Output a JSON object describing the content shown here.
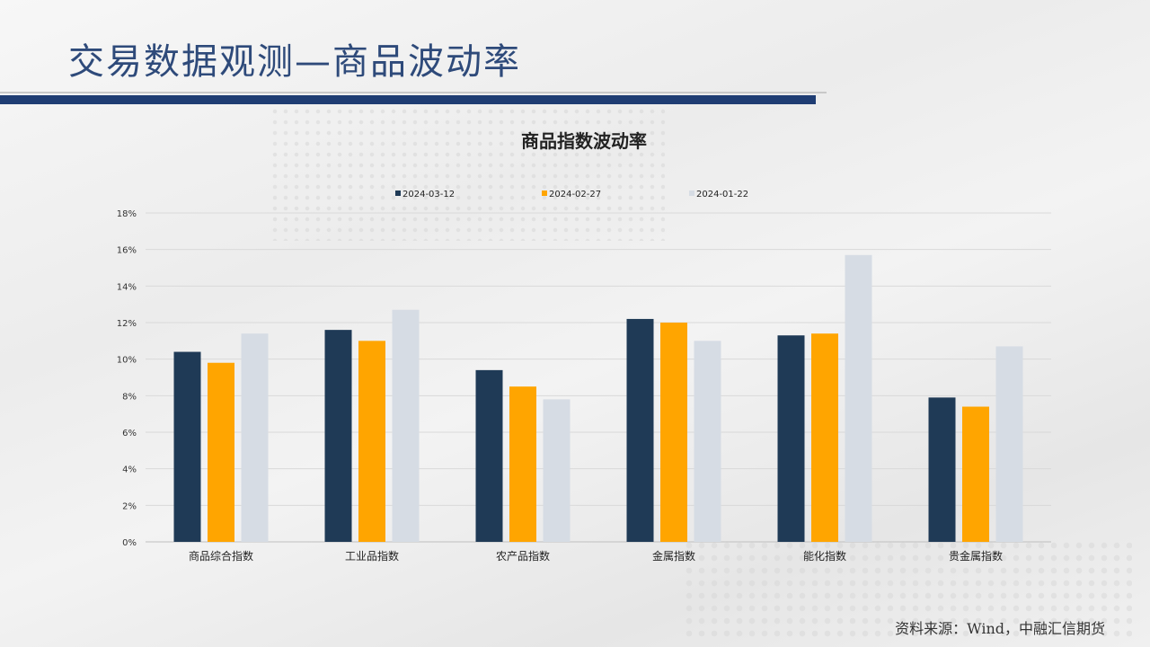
{
  "page": {
    "title": "交易数据观测—商品波动率",
    "source": "资料来源：Wind，中融汇信期货"
  },
  "colors": {
    "title_text": "#2e4a7a",
    "title_rule": "#1f3d73",
    "series": [
      "#1f3a56",
      "#ffa500",
      "#d6dce4"
    ]
  },
  "chart_data": {
    "type": "bar",
    "title": "商品指数波动率",
    "categories": [
      "商品综合指数",
      "工业品指数",
      "农产品指数",
      "金属指数",
      "能化指数",
      "贵金属指数"
    ],
    "series": [
      {
        "name": "2024-03-12",
        "values": [
          10.4,
          11.6,
          9.4,
          12.2,
          11.3,
          7.9
        ]
      },
      {
        "name": "2024-02-27",
        "values": [
          9.8,
          11.0,
          8.5,
          12.0,
          11.4,
          7.4
        ]
      },
      {
        "name": "2024-01-22",
        "values": [
          11.4,
          12.7,
          7.8,
          11.0,
          15.7,
          10.7
        ]
      }
    ],
    "yticks": [
      "0%",
      "2%",
      "4%",
      "6%",
      "8%",
      "10%",
      "12%",
      "14%",
      "16%",
      "18%"
    ],
    "ylim": [
      0,
      18
    ],
    "grid": true,
    "legend_position": "top"
  }
}
